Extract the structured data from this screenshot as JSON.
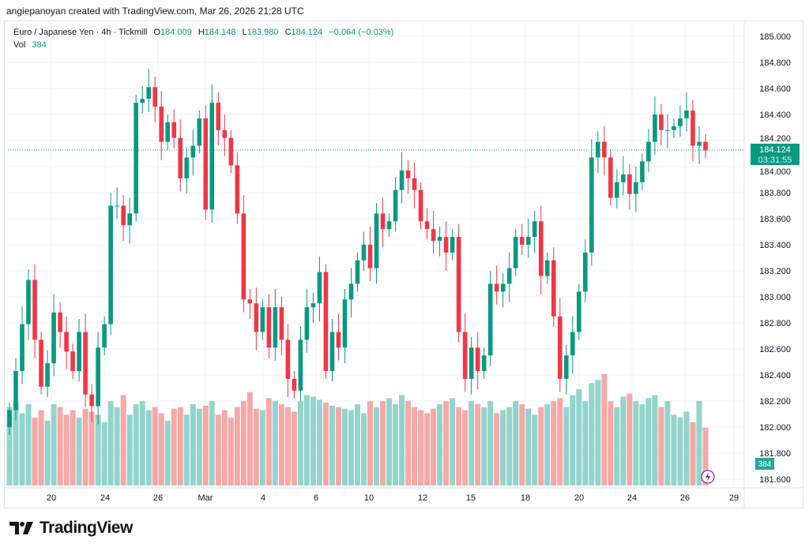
{
  "credit": "angiepanoyan created with TradingView.com, Mar 26, 2026 21:28 UTC",
  "legend": {
    "symbol": "Euro / Japanese Yen · 4h · Tickmill",
    "o_label": "O",
    "o": "184.009",
    "h_label": "H",
    "h": "184.148",
    "l_label": "L",
    "l": "183.980",
    "c_label": "C",
    "c": "184.124",
    "change": "−0.064 (−0.03%)",
    "vol_label": "Vol",
    "vol": "384"
  },
  "price_label": {
    "price": "184.124",
    "countdown": "03:31:55"
  },
  "volume_label": "384",
  "logo_text": "TradingView",
  "colors": {
    "up": "#089981",
    "down": "#f23645",
    "up_vol": "#93d5cc",
    "down_vol": "#f7a9a7",
    "grid": "#f0f3fa"
  },
  "chart_data": {
    "type": "candlestick",
    "title": "Euro / Japanese Yen · 4h · Tickmill",
    "y_ticks": [
      "185.000",
      "184.800",
      "184.600",
      "184.400",
      "184.200",
      "184.000",
      "183.800",
      "183.600",
      "183.400",
      "183.200",
      "183.000",
      "182.800",
      "182.600",
      "182.400",
      "182.200",
      "182.000",
      "181.800",
      "181.600"
    ],
    "ylim": [
      181.55,
      185.1
    ],
    "x_ticks": [
      "20",
      "24",
      "26",
      "Mar",
      "4",
      "6",
      "10",
      "12",
      "15",
      "18",
      "20",
      "24",
      "26",
      "29"
    ],
    "closes": [
      182.13,
      182.43,
      182.79,
      183.13,
      182.67,
      182.31,
      182.49,
      182.88,
      182.73,
      182.58,
      182.43,
      182.73,
      182.25,
      182.16,
      182.61,
      182.79,
      183.7,
      183.7,
      183.55,
      183.64,
      184.49,
      184.52,
      184.61,
      184.46,
      184.19,
      184.34,
      184.22,
      183.91,
      184.07,
      184.16,
      184.37,
      183.67,
      184.49,
      184.28,
      184.22,
      184.01,
      183.64,
      182.98,
      182.95,
      182.73,
      182.92,
      182.61,
      182.92,
      182.67,
      182.37,
      182.28,
      182.67,
      182.92,
      182.95,
      183.19,
      182.43,
      182.73,
      182.61,
      182.98,
      183.1,
      183.28,
      183.4,
      183.22,
      183.64,
      183.52,
      183.58,
      183.82,
      183.97,
      183.91,
      183.82,
      183.58,
      183.52,
      183.43,
      183.46,
      183.34,
      183.46,
      182.73,
      182.37,
      182.61,
      182.43,
      182.55,
      183.1,
      183.04,
      183.1,
      183.22,
      183.46,
      183.4,
      183.46,
      183.58,
      183.16,
      183.28,
      182.85,
      182.37,
      182.55,
      182.73,
      183.04,
      183.34,
      184.07,
      184.19,
      184.07,
      183.76,
      183.88,
      183.94,
      183.79,
      183.88,
      184.04,
      184.19,
      184.4,
      184.28,
      184.28,
      184.31,
      184.37,
      184.43,
      184.16,
      184.19,
      184.124
    ],
    "first_open": 182.0,
    "volumes": [
      520,
      560,
      480,
      540,
      450,
      500,
      430,
      540,
      520,
      470,
      500,
      450,
      510,
      490,
      470,
      420,
      560,
      520,
      600,
      470,
      540,
      560,
      500,
      520,
      480,
      430,
      510,
      520,
      470,
      540,
      510,
      530,
      560,
      470,
      500,
      450,
      520,
      560,
      620,
      510,
      500,
      580,
      560,
      540,
      520,
      490,
      560,
      600,
      590,
      570,
      550,
      530,
      520,
      510,
      500,
      540,
      480,
      560,
      520,
      560,
      580,
      540,
      600,
      560,
      520,
      500,
      480,
      510,
      540,
      560,
      580,
      520,
      500,
      560,
      540,
      520,
      560,
      480,
      500,
      520,
      560,
      540,
      510,
      470,
      520,
      540,
      560,
      580,
      520,
      600,
      640,
      560,
      680,
      700,
      740,
      560,
      520,
      590,
      610,
      560,
      540,
      580,
      600,
      520,
      560,
      470,
      450,
      490,
      420,
      560,
      384
    ],
    "current_price": 184.124
  }
}
